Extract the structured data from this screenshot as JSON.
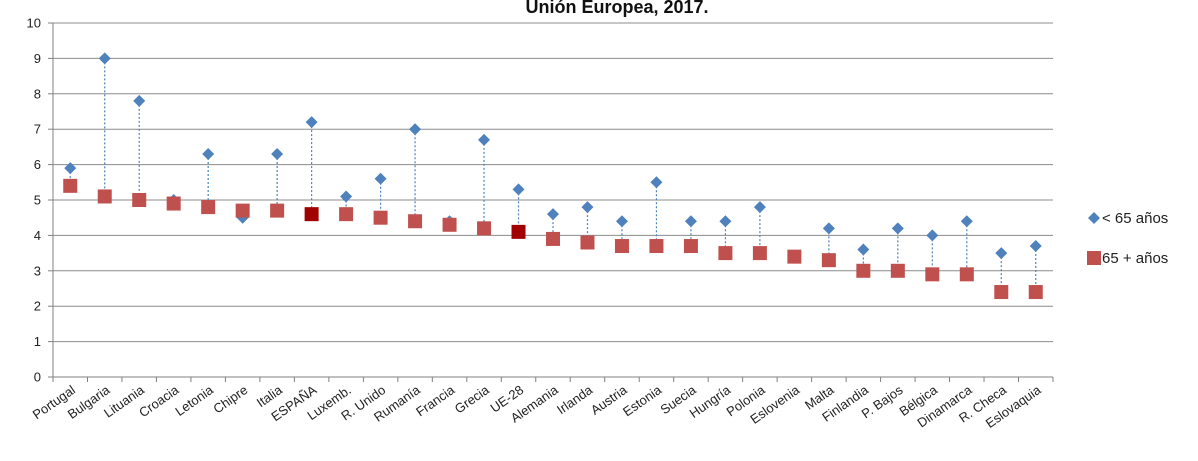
{
  "chart_data": {
    "type": "scatter",
    "title": "Unión Europea, 2017.",
    "xlabel": "",
    "ylabel": "",
    "ylim": [
      0,
      10
    ],
    "yticks": [
      0,
      1,
      2,
      3,
      4,
      5,
      6,
      7,
      8,
      9,
      10
    ],
    "grid": true,
    "legend_position": "right",
    "categories": [
      "Portugal",
      "Bulgaria",
      "Lituania",
      "Croacia",
      "Letonia",
      "Chipre",
      "Italia",
      "ESPAÑA",
      "Luxemb.",
      "R. Unido",
      "Rumanía",
      "Francia",
      "Grecia",
      "UE-28",
      "Alemania",
      "Irlanda",
      "Austria",
      "Estonia",
      "Suecia",
      "Hungría",
      "Polonia",
      "Eslovenia",
      "Malta",
      "Finlandia",
      "P. Bajos",
      "Bélgica",
      "Dinamarca",
      "R. Checa",
      "Eslovaquia"
    ],
    "highlighted_categories": [
      "ESPAÑA",
      "UE-28"
    ],
    "series": [
      {
        "name": "< 65 años",
        "marker": "diamond",
        "color": "#4F81BD",
        "values": [
          5.9,
          9.0,
          7.8,
          5.0,
          6.3,
          4.5,
          6.3,
          7.2,
          5.1,
          5.6,
          7.0,
          4.4,
          6.7,
          5.3,
          4.6,
          4.8,
          4.4,
          5.5,
          4.4,
          4.4,
          4.8,
          3.4,
          4.2,
          3.6,
          4.2,
          4.0,
          4.4,
          3.5,
          3.7
        ]
      },
      {
        "name": "65 + años",
        "marker": "square",
        "color": "#C0504D",
        "highlight_color": "#A00000",
        "values": [
          5.4,
          5.1,
          5.0,
          4.9,
          4.8,
          4.7,
          4.7,
          4.6,
          4.6,
          4.5,
          4.4,
          4.3,
          4.2,
          4.1,
          3.9,
          3.8,
          3.7,
          3.7,
          3.7,
          3.5,
          3.5,
          3.4,
          3.3,
          3.0,
          3.0,
          2.9,
          2.9,
          2.4,
          2.4
        ]
      }
    ]
  }
}
